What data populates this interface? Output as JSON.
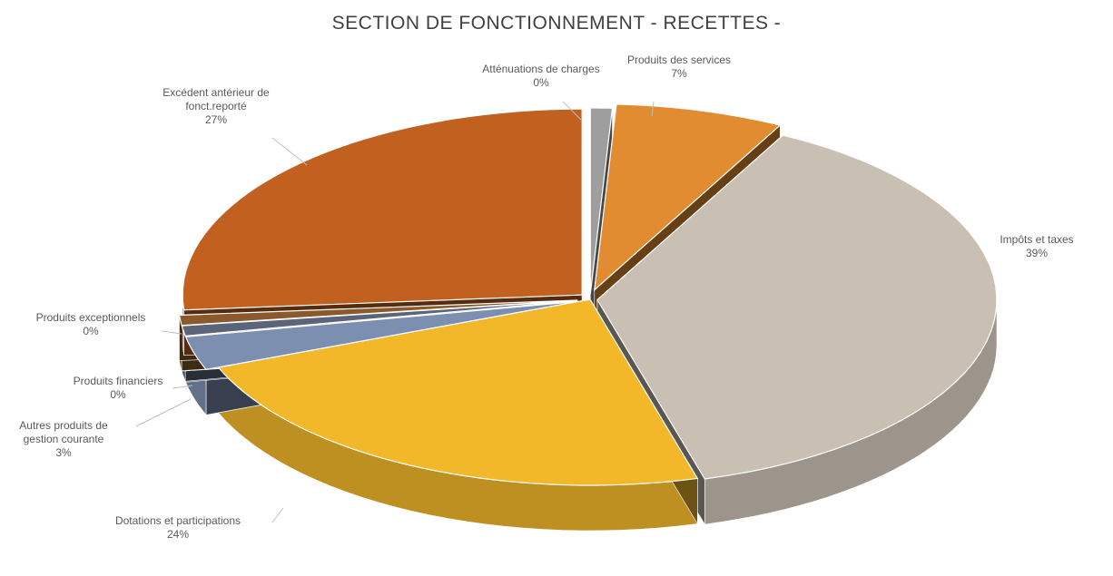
{
  "chart_data": {
    "type": "pie",
    "title": "SECTION DE FONCTIONNEMENT - RECETTES -",
    "slices": [
      {
        "label": "Atténuations de charges",
        "value": 0,
        "pct_label": "0%"
      },
      {
        "label": "Produits des services",
        "value": 7,
        "pct_label": "7%"
      },
      {
        "label": "Impôts et taxes",
        "value": 39,
        "pct_label": "39%"
      },
      {
        "label": "Dotations et participations",
        "value": 24,
        "pct_label": "24%"
      },
      {
        "label": "Autres produits de gestion courante",
        "value": 3,
        "pct_label": "3%"
      },
      {
        "label": "Produits financiers",
        "value": 0,
        "pct_label": "0%"
      },
      {
        "label": "Produits exceptionnels",
        "value": 0,
        "pct_label": "0%"
      },
      {
        "label": "Excédent antérieur de fonct.reporté",
        "value": 27,
        "pct_label": "27%"
      }
    ],
    "legend": "none",
    "style": "3d-exploded"
  },
  "colors": {
    "Atténuations de charges": "#9e9e9e",
    "Produits des services": "#e28c32",
    "Impôts et taxes": "#c9bfb3",
    "Dotations et participations": "#f2b82a",
    "Autres produits de gestion courante": "#7d8fb0",
    "Produits financiers": "#5b6478",
    "Produits exceptionnels": "#8a5a2c",
    "Excédent antérieur de fonct.reporté": "#c1601f"
  }
}
